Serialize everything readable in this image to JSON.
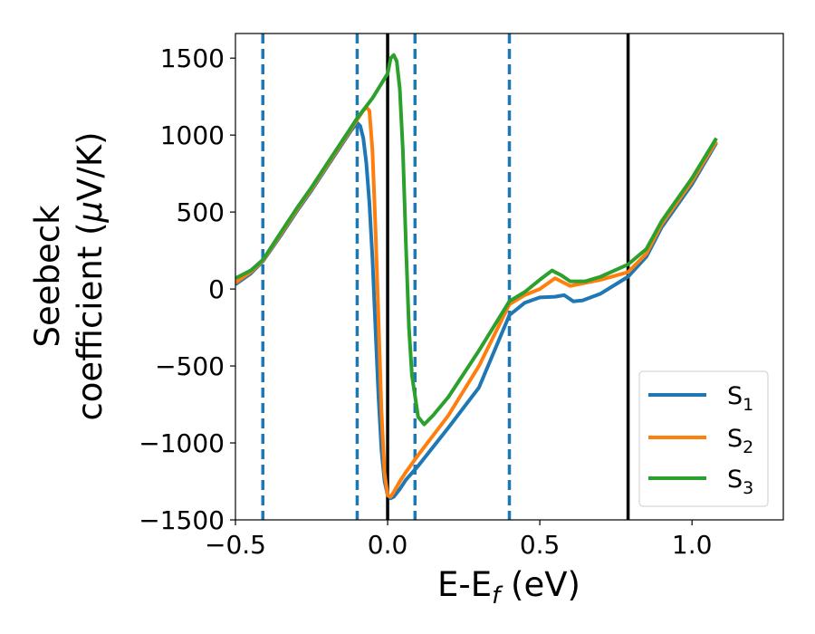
{
  "chart_data": {
    "type": "line",
    "xlabel": {
      "main": "E-E",
      "sub": "f",
      "unit": " (eV)"
    },
    "ylabel": {
      "line1": "Seebeck",
      "line2": "coefficient  (",
      "mu": "μ",
      "unit": "V/K)"
    },
    "xlim": [
      -0.5,
      1.3
    ],
    "ylim": [
      -1500,
      1660
    ],
    "xticks": [
      -0.5,
      0.0,
      0.5,
      1.0
    ],
    "xtick_labels": [
      "−0.5",
      "0.0",
      "0.5",
      "1.0"
    ],
    "yticks": [
      -1500,
      -1000,
      -500,
      0,
      500,
      1000,
      1500
    ],
    "ytick_labels": [
      "−1500",
      "−1000",
      "−500",
      "0",
      "500",
      "1000",
      "1500"
    ],
    "grid": false,
    "legend_position": "lower-right",
    "vlines_dashed": [
      -0.41,
      -0.1,
      0.09,
      0.4
    ],
    "vlines_solid": [
      0.0,
      0.79
    ],
    "series": [
      {
        "name": "S",
        "sub": "1",
        "color": "#1f77b4",
        "points": [
          [
            -0.5,
            30
          ],
          [
            -0.45,
            100
          ],
          [
            -0.41,
            180
          ],
          [
            -0.35,
            350
          ],
          [
            -0.3,
            500
          ],
          [
            -0.25,
            640
          ],
          [
            -0.2,
            790
          ],
          [
            -0.15,
            940
          ],
          [
            -0.12,
            1030
          ],
          [
            -0.1,
            1080
          ],
          [
            -0.09,
            1060
          ],
          [
            -0.08,
            980
          ],
          [
            -0.07,
            820
          ],
          [
            -0.06,
            560
          ],
          [
            -0.05,
            200
          ],
          [
            -0.04,
            -250
          ],
          [
            -0.03,
            -700
          ],
          [
            -0.02,
            -1050
          ],
          [
            -0.01,
            -1250
          ],
          [
            0.0,
            -1340
          ],
          [
            0.01,
            -1360
          ],
          [
            0.02,
            -1350
          ],
          [
            0.04,
            -1300
          ],
          [
            0.06,
            -1240
          ],
          [
            0.1,
            -1150
          ],
          [
            0.2,
            -900
          ],
          [
            0.3,
            -640
          ],
          [
            0.4,
            -170
          ],
          [
            0.45,
            -90
          ],
          [
            0.5,
            -55
          ],
          [
            0.55,
            -50
          ],
          [
            0.58,
            -40
          ],
          [
            0.61,
            -80
          ],
          [
            0.64,
            -75
          ],
          [
            0.7,
            -30
          ],
          [
            0.79,
            80
          ],
          [
            0.85,
            210
          ],
          [
            0.9,
            400
          ],
          [
            1.0,
            680
          ],
          [
            1.08,
            950
          ]
        ]
      },
      {
        "name": "S",
        "sub": "2",
        "color": "#ff7f0e",
        "points": [
          [
            -0.5,
            40
          ],
          [
            -0.45,
            110
          ],
          [
            -0.41,
            185
          ],
          [
            -0.35,
            360
          ],
          [
            -0.3,
            510
          ],
          [
            -0.25,
            650
          ],
          [
            -0.2,
            800
          ],
          [
            -0.15,
            950
          ],
          [
            -0.12,
            1040
          ],
          [
            -0.1,
            1100
          ],
          [
            -0.08,
            1160
          ],
          [
            -0.07,
            1180
          ],
          [
            -0.06,
            1160
          ],
          [
            -0.05,
            900
          ],
          [
            -0.04,
            400
          ],
          [
            -0.03,
            -200
          ],
          [
            -0.02,
            -800
          ],
          [
            -0.01,
            -1200
          ],
          [
            0.0,
            -1340
          ],
          [
            0.01,
            -1350
          ],
          [
            0.02,
            -1320
          ],
          [
            0.04,
            -1250
          ],
          [
            0.06,
            -1190
          ],
          [
            0.1,
            -1080
          ],
          [
            0.2,
            -820
          ],
          [
            0.3,
            -500
          ],
          [
            0.4,
            -100
          ],
          [
            0.45,
            -40
          ],
          [
            0.5,
            0
          ],
          [
            0.55,
            70
          ],
          [
            0.57,
            50
          ],
          [
            0.6,
            20
          ],
          [
            0.65,
            40
          ],
          [
            0.7,
            60
          ],
          [
            0.79,
            110
          ],
          [
            0.85,
            230
          ],
          [
            0.9,
            420
          ],
          [
            1.0,
            700
          ],
          [
            1.08,
            960
          ]
        ]
      },
      {
        "name": "S",
        "sub": "3",
        "color": "#2ca02c",
        "points": [
          [
            -0.5,
            70
          ],
          [
            -0.45,
            120
          ],
          [
            -0.41,
            190
          ],
          [
            -0.35,
            370
          ],
          [
            -0.3,
            520
          ],
          [
            -0.25,
            660
          ],
          [
            -0.2,
            810
          ],
          [
            -0.15,
            960
          ],
          [
            -0.1,
            1110
          ],
          [
            -0.05,
            1240
          ],
          [
            0.0,
            1400
          ],
          [
            0.01,
            1500
          ],
          [
            0.02,
            1520
          ],
          [
            0.03,
            1480
          ],
          [
            0.04,
            1300
          ],
          [
            0.05,
            900
          ],
          [
            0.06,
            300
          ],
          [
            0.07,
            -250
          ],
          [
            0.08,
            -560
          ],
          [
            0.1,
            -830
          ],
          [
            0.12,
            -880
          ],
          [
            0.15,
            -820
          ],
          [
            0.2,
            -700
          ],
          [
            0.3,
            -400
          ],
          [
            0.4,
            -80
          ],
          [
            0.45,
            -20
          ],
          [
            0.5,
            60
          ],
          [
            0.54,
            120
          ],
          [
            0.57,
            90
          ],
          [
            0.6,
            50
          ],
          [
            0.65,
            50
          ],
          [
            0.7,
            80
          ],
          [
            0.79,
            160
          ],
          [
            0.85,
            260
          ],
          [
            0.9,
            440
          ],
          [
            1.0,
            720
          ],
          [
            1.08,
            980
          ]
        ]
      }
    ]
  }
}
